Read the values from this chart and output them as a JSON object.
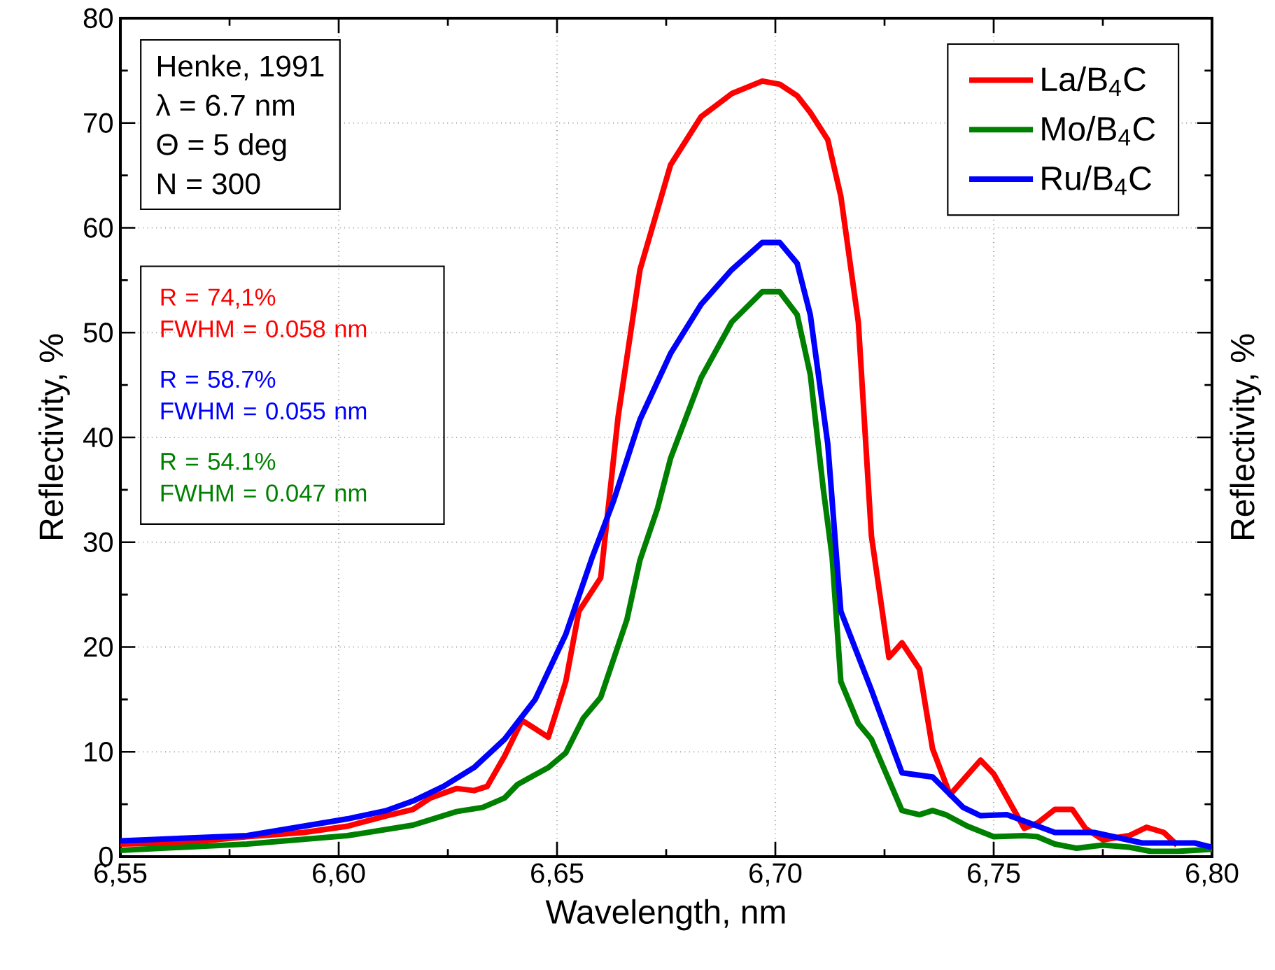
{
  "chart_data": {
    "type": "line",
    "xlabel": "Wavelength, nm",
    "ylabel": "Reflectivity, %",
    "y2label": "Reflectivity, %",
    "xlim": [
      6.55,
      6.8
    ],
    "ylim": [
      0,
      80
    ],
    "xticks": [
      {
        "value": 6.55,
        "label": "6,55"
      },
      {
        "value": 6.6,
        "label": "6,60"
      },
      {
        "value": 6.65,
        "label": "6,65"
      },
      {
        "value": 6.7,
        "label": "6,70"
      },
      {
        "value": 6.75,
        "label": "6,75"
      },
      {
        "value": 6.8,
        "label": "6,80"
      }
    ],
    "yticks": [
      0,
      10,
      20,
      30,
      40,
      50,
      60,
      70,
      80
    ],
    "grid": true,
    "legend": "top right",
    "marker": "none",
    "line_style": "solid",
    "annotations": [
      "Henke, 1991",
      "λ = 6.7 nm",
      "Θ = 5 deg",
      "N = 300",
      "R = 74,1%",
      "FWHM = 0.058 nm",
      "R = 58.7%",
      "FWHM = 0.055 nm",
      "R = 54.1%",
      "FWHM = 0.047 nm"
    ],
    "series": [
      {
        "name": "La/B$_{4}$C",
        "color": "#ff0000",
        "x": [
          6.55,
          6.564,
          6.579,
          6.592,
          6.602,
          6.611,
          6.617,
          6.621,
          6.627,
          6.631,
          6.634,
          6.638,
          6.642,
          6.648,
          6.652,
          6.655,
          6.66,
          6.664,
          6.669,
          6.676,
          6.683,
          6.69,
          6.697,
          6.701,
          6.705,
          6.708,
          6.712,
          6.715,
          6.719,
          6.722,
          6.726,
          6.729,
          6.733,
          6.736,
          6.74,
          6.747,
          6.75,
          6.757,
          6.76,
          6.764,
          6.768,
          6.771,
          6.775,
          6.781,
          6.785,
          6.789,
          6.792
        ],
        "values": [
          1.2,
          1.3,
          1.9,
          2.3,
          2.9,
          3.9,
          4.5,
          5.6,
          6.5,
          6.3,
          6.7,
          9.6,
          13,
          11.4,
          16.7,
          23.4,
          26.6,
          42,
          56,
          66,
          70.6,
          72.8,
          74.0,
          73.7,
          72.6,
          71,
          68.4,
          63,
          51,
          30.6,
          19.0,
          20.4,
          17.9,
          10.3,
          5.9,
          9.2,
          7.9,
          2.7,
          3.2,
          4.5,
          4.5,
          2.7,
          1.6,
          2.0,
          2.8,
          2.3,
          1.1
        ]
      },
      {
        "name": "Mo/B$_{4}$C",
        "color": "#008000",
        "x": [
          6.55,
          6.579,
          6.602,
          6.617,
          6.627,
          6.633,
          6.638,
          6.641,
          6.648,
          6.652,
          6.656,
          6.66,
          6.666,
          6.669,
          6.673,
          6.676,
          6.683,
          6.69,
          6.697,
          6.701,
          6.705,
          6.708,
          6.711,
          6.713,
          6.715,
          6.719,
          6.722,
          6.729,
          6.733,
          6.736,
          6.739,
          6.744,
          6.75,
          6.757,
          6.76,
          6.764,
          6.769,
          6.775,
          6.781,
          6.786,
          6.792,
          6.8
        ],
        "values": [
          0.6,
          1.2,
          2.0,
          3.0,
          4.3,
          4.7,
          5.6,
          6.9,
          8.5,
          9.9,
          13.2,
          15.2,
          22.6,
          28.3,
          33.2,
          38,
          45.7,
          51,
          53.9,
          53.9,
          51.7,
          46,
          35,
          28.6,
          16.7,
          12.7,
          11.2,
          4.4,
          4.0,
          4.4,
          4.0,
          2.9,
          1.9,
          2.0,
          1.9,
          1.2,
          0.8,
          1.1,
          0.9,
          0.5,
          0.5,
          0.7
        ]
      },
      {
        "name": "Ru/B$_{4}$C",
        "color": "#0000ff",
        "x": [
          6.55,
          6.579,
          6.602,
          6.611,
          6.617,
          6.624,
          6.631,
          6.638,
          6.645,
          6.652,
          6.658,
          6.663,
          6.669,
          6.676,
          6.683,
          6.69,
          6.697,
          6.701,
          6.705,
          6.708,
          6.712,
          6.714,
          6.715,
          6.722,
          6.729,
          6.736,
          6.743,
          6.747,
          6.753,
          6.764,
          6.773,
          6.784,
          6.796,
          6.8
        ],
        "values": [
          1.5,
          2.0,
          3.6,
          4.4,
          5.3,
          6.7,
          8.5,
          11.2,
          15.0,
          21.2,
          28.5,
          34,
          41.7,
          48,
          52.7,
          56,
          58.6,
          58.6,
          56.6,
          51.7,
          39.4,
          28.6,
          23.4,
          15.9,
          8.0,
          7.6,
          4.7,
          3.9,
          4.0,
          2.3,
          2.3,
          1.3,
          1.3,
          0.9
        ]
      }
    ]
  }
}
